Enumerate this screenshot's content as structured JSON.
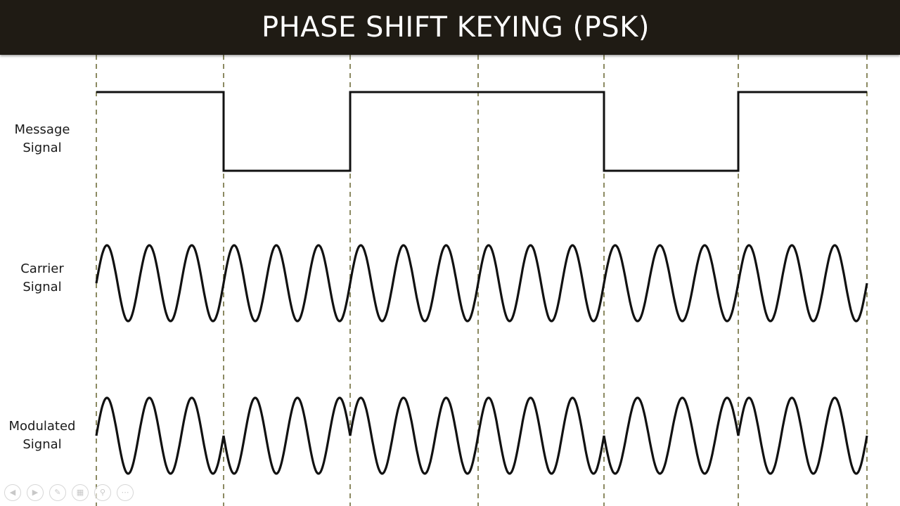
{
  "slide": {
    "title": "PHASE SHIFT KEYING (PSK)"
  },
  "labels": {
    "message_line1": "Message",
    "message_line2": "Signal",
    "carrier_line1": "Carrier",
    "carrier_line2": "Signal",
    "modulated_line1": "Modulated",
    "modulated_line2": "Signal"
  },
  "diagram_data": {
    "message_bits": [
      1,
      0,
      1,
      1,
      0,
      1
    ],
    "carrier_cycles_per_bit": 3,
    "modulation": "PSK",
    "colors": {
      "title_bar": "#1f1b14",
      "waveform": "#111111",
      "divider": "#8c8a62"
    }
  },
  "controls": {
    "icons": [
      "previous-icon",
      "next-icon",
      "pen-icon",
      "slides-icon",
      "zoom-icon",
      "more-icon"
    ]
  }
}
